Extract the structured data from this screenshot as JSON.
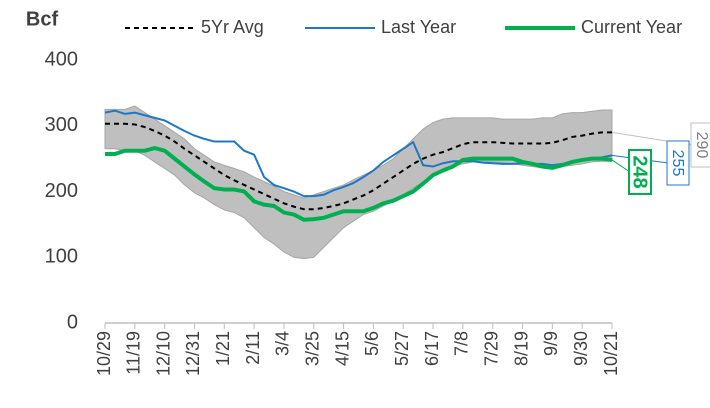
{
  "chart_data": {
    "type": "line",
    "ylabel": "Bcf",
    "categories": [
      "10/29",
      null,
      null,
      "11/19",
      null,
      null,
      "12/10",
      null,
      null,
      "12/31",
      null,
      null,
      "1/21",
      null,
      null,
      "2/11",
      null,
      null,
      "3/4",
      null,
      null,
      "3/25",
      null,
      null,
      "4/15",
      null,
      null,
      "5/6",
      null,
      null,
      "5/27",
      null,
      null,
      "6/17",
      null,
      null,
      "7/8",
      null,
      null,
      "7/29",
      null,
      null,
      "8/19",
      null,
      null,
      "9/9",
      null,
      null,
      "9/30",
      null,
      null,
      "10/21"
    ],
    "series": [
      {
        "name": "5Yr Avg",
        "color": "#000000",
        "dashed": true,
        "width": 2,
        "values": [
          303,
          303,
          303,
          302,
          298,
          292,
          285,
          276,
          265,
          255,
          245,
          235,
          225,
          217,
          210,
          203,
          196,
          189,
          182,
          177,
          173,
          173,
          175,
          178,
          182,
          188,
          194,
          202,
          212,
          222,
          232,
          242,
          250,
          256,
          260,
          266,
          272,
          275,
          275,
          275,
          274,
          273,
          273,
          273,
          273,
          274,
          278,
          283,
          285,
          288,
          290,
          290
        ],
        "end_label": "290",
        "label_bold": false
      },
      {
        "name": "Last Year",
        "color": "#1f77c8",
        "dashed": false,
        "width": 2,
        "values": [
          320,
          323,
          318,
          320,
          316,
          312,
          308,
          300,
          292,
          285,
          280,
          276,
          276,
          276,
          262,
          256,
          222,
          210,
          205,
          200,
          193,
          193,
          195,
          202,
          207,
          213,
          222,
          232,
          245,
          255,
          265,
          275,
          240,
          238,
          243,
          246,
          246,
          246,
          244,
          243,
          242,
          242,
          243,
          242,
          242,
          240,
          242,
          245,
          248,
          250,
          252,
          255
        ],
        "end_label": "255",
        "label_bold": false
      },
      {
        "name": "Current Year",
        "color": "#00b050",
        "dashed": false,
        "width": 4,
        "values": [
          257,
          257,
          262,
          262,
          262,
          266,
          262,
          250,
          238,
          226,
          215,
          205,
          203,
          203,
          200,
          185,
          180,
          178,
          168,
          165,
          157,
          158,
          160,
          165,
          170,
          170,
          170,
          175,
          182,
          186,
          193,
          200,
          212,
          225,
          232,
          238,
          248,
          250,
          250,
          250,
          250,
          250,
          245,
          242,
          238,
          236,
          240,
          245,
          248,
          250,
          250,
          248
        ],
        "end_label": "248",
        "label_bold": true
      }
    ],
    "range": {
      "color": "#bfbfbf",
      "high": [
        325,
        325,
        325,
        330,
        320,
        310,
        300,
        290,
        280,
        265,
        255,
        245,
        240,
        235,
        230,
        222,
        215,
        208,
        200,
        195,
        190,
        195,
        200,
        205,
        210,
        218,
        225,
        232,
        240,
        250,
        265,
        280,
        295,
        305,
        310,
        312,
        312,
        312,
        312,
        312,
        310,
        310,
        310,
        310,
        312,
        312,
        318,
        320,
        320,
        322,
        324,
        324
      ],
      "low": [
        265,
        265,
        262,
        262,
        255,
        245,
        235,
        225,
        210,
        198,
        190,
        180,
        172,
        168,
        160,
        145,
        130,
        120,
        108,
        100,
        98,
        100,
        115,
        130,
        145,
        155,
        165,
        170,
        178,
        186,
        195,
        205,
        215,
        225,
        232,
        238,
        242,
        245,
        245,
        245,
        244,
        242,
        240,
        238,
        236,
        236,
        238,
        240,
        242,
        245,
        246,
        246
      ]
    },
    "ylim": [
      0,
      400
    ],
    "yticks": [
      0,
      100,
      200,
      300,
      400
    ],
    "grid": false,
    "legend": "top"
  }
}
